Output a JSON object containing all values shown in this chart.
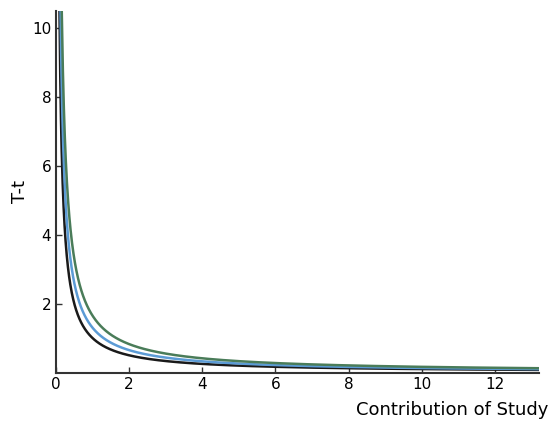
{
  "title": "",
  "xlabel": "Contribution of Studying",
  "ylabel": "T-t",
  "xlim": [
    0,
    13.2
  ],
  "ylim": [
    0,
    10.5
  ],
  "xticks": [
    0,
    2,
    4,
    6,
    8,
    10,
    12
  ],
  "yticks": [
    2,
    4,
    6,
    8,
    10
  ],
  "curves": [
    {
      "color": "#1a1a1a",
      "linewidth": 1.8,
      "k": 1.0,
      "label": "black"
    },
    {
      "color": "#5b9bd5",
      "linewidth": 1.8,
      "k": 1.3,
      "label": "blue"
    },
    {
      "color": "#4a7c59",
      "linewidth": 1.8,
      "k": 1.65,
      "label": "green"
    }
  ],
  "background_color": "#ffffff",
  "spine_color": "#333333",
  "tick_fontsize": 11,
  "label_fontsize": 13,
  "x_start": 0.09,
  "x_end": 13.2,
  "num_points": 2000
}
